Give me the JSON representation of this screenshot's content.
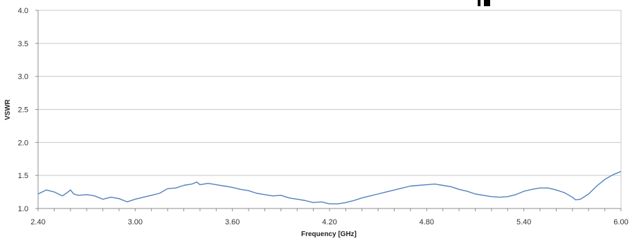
{
  "chart_data": {
    "type": "line",
    "title": "",
    "xlabel": "Frequency [GHz]",
    "ylabel": "VSWR",
    "xlim": [
      2.4,
      6.0
    ],
    "ylim": [
      1.0,
      4.0
    ],
    "x_ticks": [
      "2.40",
      "3.00",
      "3.60",
      "4.20",
      "4.80",
      "5.40",
      "6.00"
    ],
    "y_ticks": [
      "1.0",
      "1.5",
      "2.0",
      "2.5",
      "3.0",
      "3.5",
      "4.0"
    ],
    "grid": true,
    "legend": "none",
    "series": [
      {
        "color": "#4f81bd",
        "x": [
          2.4,
          2.45,
          2.5,
          2.55,
          2.58,
          2.6,
          2.62,
          2.65,
          2.7,
          2.75,
          2.8,
          2.85,
          2.9,
          2.95,
          3.0,
          3.05,
          3.1,
          3.15,
          3.2,
          3.25,
          3.3,
          3.35,
          3.38,
          3.4,
          3.45,
          3.5,
          3.55,
          3.6,
          3.65,
          3.7,
          3.75,
          3.8,
          3.85,
          3.9,
          3.95,
          4.0,
          4.05,
          4.1,
          4.15,
          4.2,
          4.25,
          4.3,
          4.35,
          4.4,
          4.45,
          4.5,
          4.55,
          4.6,
          4.65,
          4.7,
          4.75,
          4.8,
          4.85,
          4.9,
          4.95,
          5.0,
          5.05,
          5.1,
          5.15,
          5.2,
          5.25,
          5.3,
          5.35,
          5.4,
          5.45,
          5.5,
          5.55,
          5.6,
          5.65,
          5.7,
          5.72,
          5.75,
          5.8,
          5.85,
          5.9,
          5.95,
          6.0
        ],
        "y": [
          1.22,
          1.28,
          1.25,
          1.19,
          1.24,
          1.28,
          1.22,
          1.2,
          1.21,
          1.19,
          1.14,
          1.17,
          1.15,
          1.1,
          1.14,
          1.17,
          1.2,
          1.23,
          1.3,
          1.31,
          1.35,
          1.37,
          1.4,
          1.36,
          1.38,
          1.36,
          1.34,
          1.32,
          1.29,
          1.27,
          1.23,
          1.21,
          1.19,
          1.2,
          1.16,
          1.14,
          1.12,
          1.09,
          1.1,
          1.07,
          1.07,
          1.09,
          1.12,
          1.16,
          1.19,
          1.22,
          1.25,
          1.28,
          1.31,
          1.34,
          1.35,
          1.36,
          1.37,
          1.35,
          1.33,
          1.29,
          1.26,
          1.22,
          1.2,
          1.18,
          1.17,
          1.18,
          1.21,
          1.26,
          1.29,
          1.31,
          1.31,
          1.28,
          1.24,
          1.17,
          1.13,
          1.14,
          1.22,
          1.34,
          1.44,
          1.51,
          1.56
        ]
      }
    ]
  }
}
